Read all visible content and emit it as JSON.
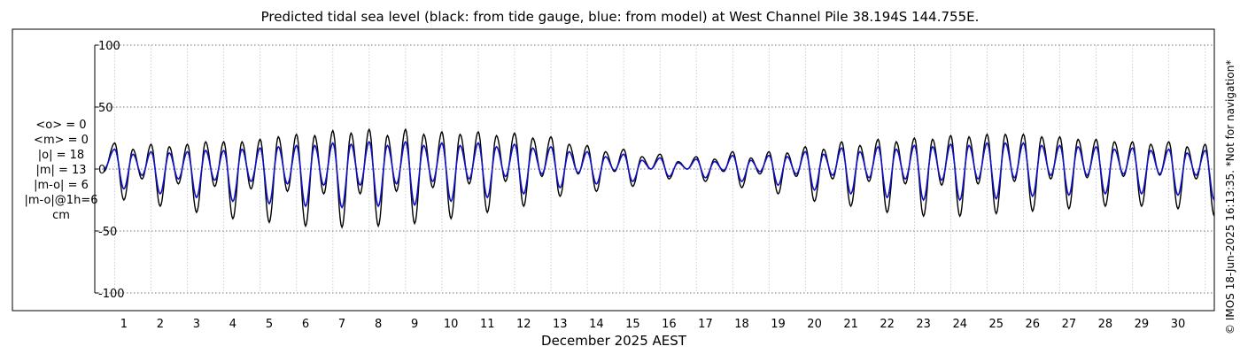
{
  "title": "Predicted tidal sea level (black: from tide gauge, blue: from model) at West Channel Pile 38.194S 144.755E.",
  "stats": [
    "<o> = 0",
    "<m> = 0",
    "|o| = 18",
    "|m| = 13",
    "|m-o| = 6",
    "|m-o|@1h=6",
    "cm"
  ],
  "credit": "© IMOS 18-Jun-2025 16:13:35. *Not for navigation*",
  "chart_data": {
    "type": "line",
    "title": "Predicted tidal sea level (black: from tide gauge, blue: from model) at West Channel Pile 38.194S 144.755E.",
    "xlabel": "December 2025 AEST",
    "ylabel": "",
    "xlim": [
      0.2,
      31
    ],
    "ylim": [
      -100,
      100
    ],
    "yticks": [
      100,
      50,
      0,
      -50,
      -100
    ],
    "xticks": [
      1,
      2,
      3,
      4,
      5,
      6,
      7,
      8,
      9,
      10,
      11,
      12,
      13,
      14,
      15,
      16,
      17,
      18,
      19,
      20,
      21,
      22,
      23,
      24,
      25,
      26,
      27,
      28,
      29,
      30
    ],
    "grid": true,
    "colors": {
      "gauge": "#000000",
      "model": "#1010c8"
    },
    "series": [
      {
        "name": "tide gauge",
        "color": "#000000",
        "days": [
          0.75,
          1.25,
          1.75,
          2.25,
          2.75,
          3.25,
          3.75,
          4.25,
          4.75,
          5.25,
          5.75,
          6.25,
          6.75,
          7.25,
          7.75,
          8.25,
          8.75,
          9.25,
          9.75,
          10.25,
          10.75,
          11.25,
          11.75,
          12.25,
          12.75,
          13.25,
          13.75,
          14.25,
          14.75,
          15.25,
          15.75,
          16.25,
          16.75,
          17.25,
          17.75,
          18.25,
          18.75,
          19.25,
          19.75,
          20.25,
          20.75,
          21.25,
          21.75,
          22.25,
          22.75,
          23.25,
          23.75,
          24.25,
          24.75,
          25.25,
          25.75,
          26.25,
          26.75,
          27.25,
          27.75,
          28.25,
          28.75,
          29.25,
          29.75,
          30.25,
          30.75
        ],
        "high": [
          21,
          16,
          20,
          18,
          20,
          22,
          22,
          22,
          24,
          26,
          28,
          27,
          31,
          29,
          32,
          27,
          32,
          28,
          30,
          28,
          30,
          27,
          29,
          25,
          26,
          20,
          19,
          14,
          16,
          10,
          12,
          6,
          10,
          8,
          14,
          9,
          14,
          13,
          18,
          16,
          22,
          19,
          24,
          22,
          25,
          24,
          27,
          26,
          28,
          28,
          28,
          26,
          26,
          24,
          24,
          22,
          22,
          20,
          22,
          18,
          20
        ],
        "low": [
          -25,
          -8,
          -30,
          -12,
          -35,
          -14,
          -40,
          -16,
          -43,
          -18,
          -46,
          -20,
          -47,
          -20,
          -46,
          -18,
          -44,
          -15,
          -40,
          -12,
          -35,
          -10,
          -30,
          -6,
          -22,
          -4,
          -18,
          -2,
          -14,
          0,
          -8,
          0,
          -10,
          -2,
          -15,
          -4,
          -20,
          -6,
          -26,
          -8,
          -30,
          -10,
          -35,
          -12,
          -38,
          -13,
          -38,
          -12,
          -36,
          -10,
          -34,
          -8,
          -32,
          -7,
          -30,
          -6,
          -30,
          -5,
          -32,
          -8,
          -38
        ]
      },
      {
        "name": "model",
        "color": "#1010c8",
        "days": [
          0.75,
          1.25,
          1.75,
          2.25,
          2.75,
          3.25,
          3.75,
          4.25,
          4.75,
          5.25,
          5.75,
          6.25,
          6.75,
          7.25,
          7.75,
          8.25,
          8.75,
          9.25,
          9.75,
          10.25,
          10.75,
          11.25,
          11.75,
          12.25,
          12.75,
          13.25,
          13.75,
          14.25,
          14.75,
          15.25,
          15.75,
          16.25,
          16.75,
          17.25,
          17.75,
          18.25,
          18.75,
          19.25,
          19.75,
          20.25,
          20.75,
          21.25,
          21.75,
          22.25,
          22.75,
          23.25,
          23.75,
          24.25,
          24.75,
          25.25,
          25.75,
          26.25,
          26.75,
          27.25,
          27.75,
          28.25,
          28.75,
          29.25,
          29.75,
          30.25,
          30.75
        ],
        "high": [
          16,
          12,
          14,
          13,
          14,
          15,
          15,
          16,
          17,
          18,
          19,
          19,
          21,
          20,
          22,
          19,
          22,
          19,
          21,
          19,
          21,
          18,
          20,
          17,
          18,
          14,
          14,
          10,
          12,
          7,
          9,
          5,
          8,
          6,
          11,
          7,
          11,
          10,
          14,
          12,
          17,
          14,
          18,
          16,
          19,
          18,
          20,
          19,
          21,
          21,
          21,
          19,
          19,
          18,
          18,
          16,
          17,
          15,
          16,
          13,
          15
        ],
        "low": [
          -16,
          -5,
          -20,
          -8,
          -23,
          -9,
          -26,
          -10,
          -28,
          -12,
          -30,
          -13,
          -31,
          -13,
          -30,
          -12,
          -29,
          -10,
          -26,
          -8,
          -23,
          -6,
          -20,
          -4,
          -15,
          -3,
          -12,
          -1,
          -10,
          0,
          -6,
          0,
          -7,
          -1,
          -10,
          -2,
          -13,
          -4,
          -17,
          -5,
          -20,
          -7,
          -23,
          -8,
          -25,
          -9,
          -25,
          -8,
          -24,
          -7,
          -22,
          -5,
          -21,
          -5,
          -20,
          -4,
          -20,
          -4,
          -21,
          -5,
          -25
        ]
      }
    ]
  }
}
